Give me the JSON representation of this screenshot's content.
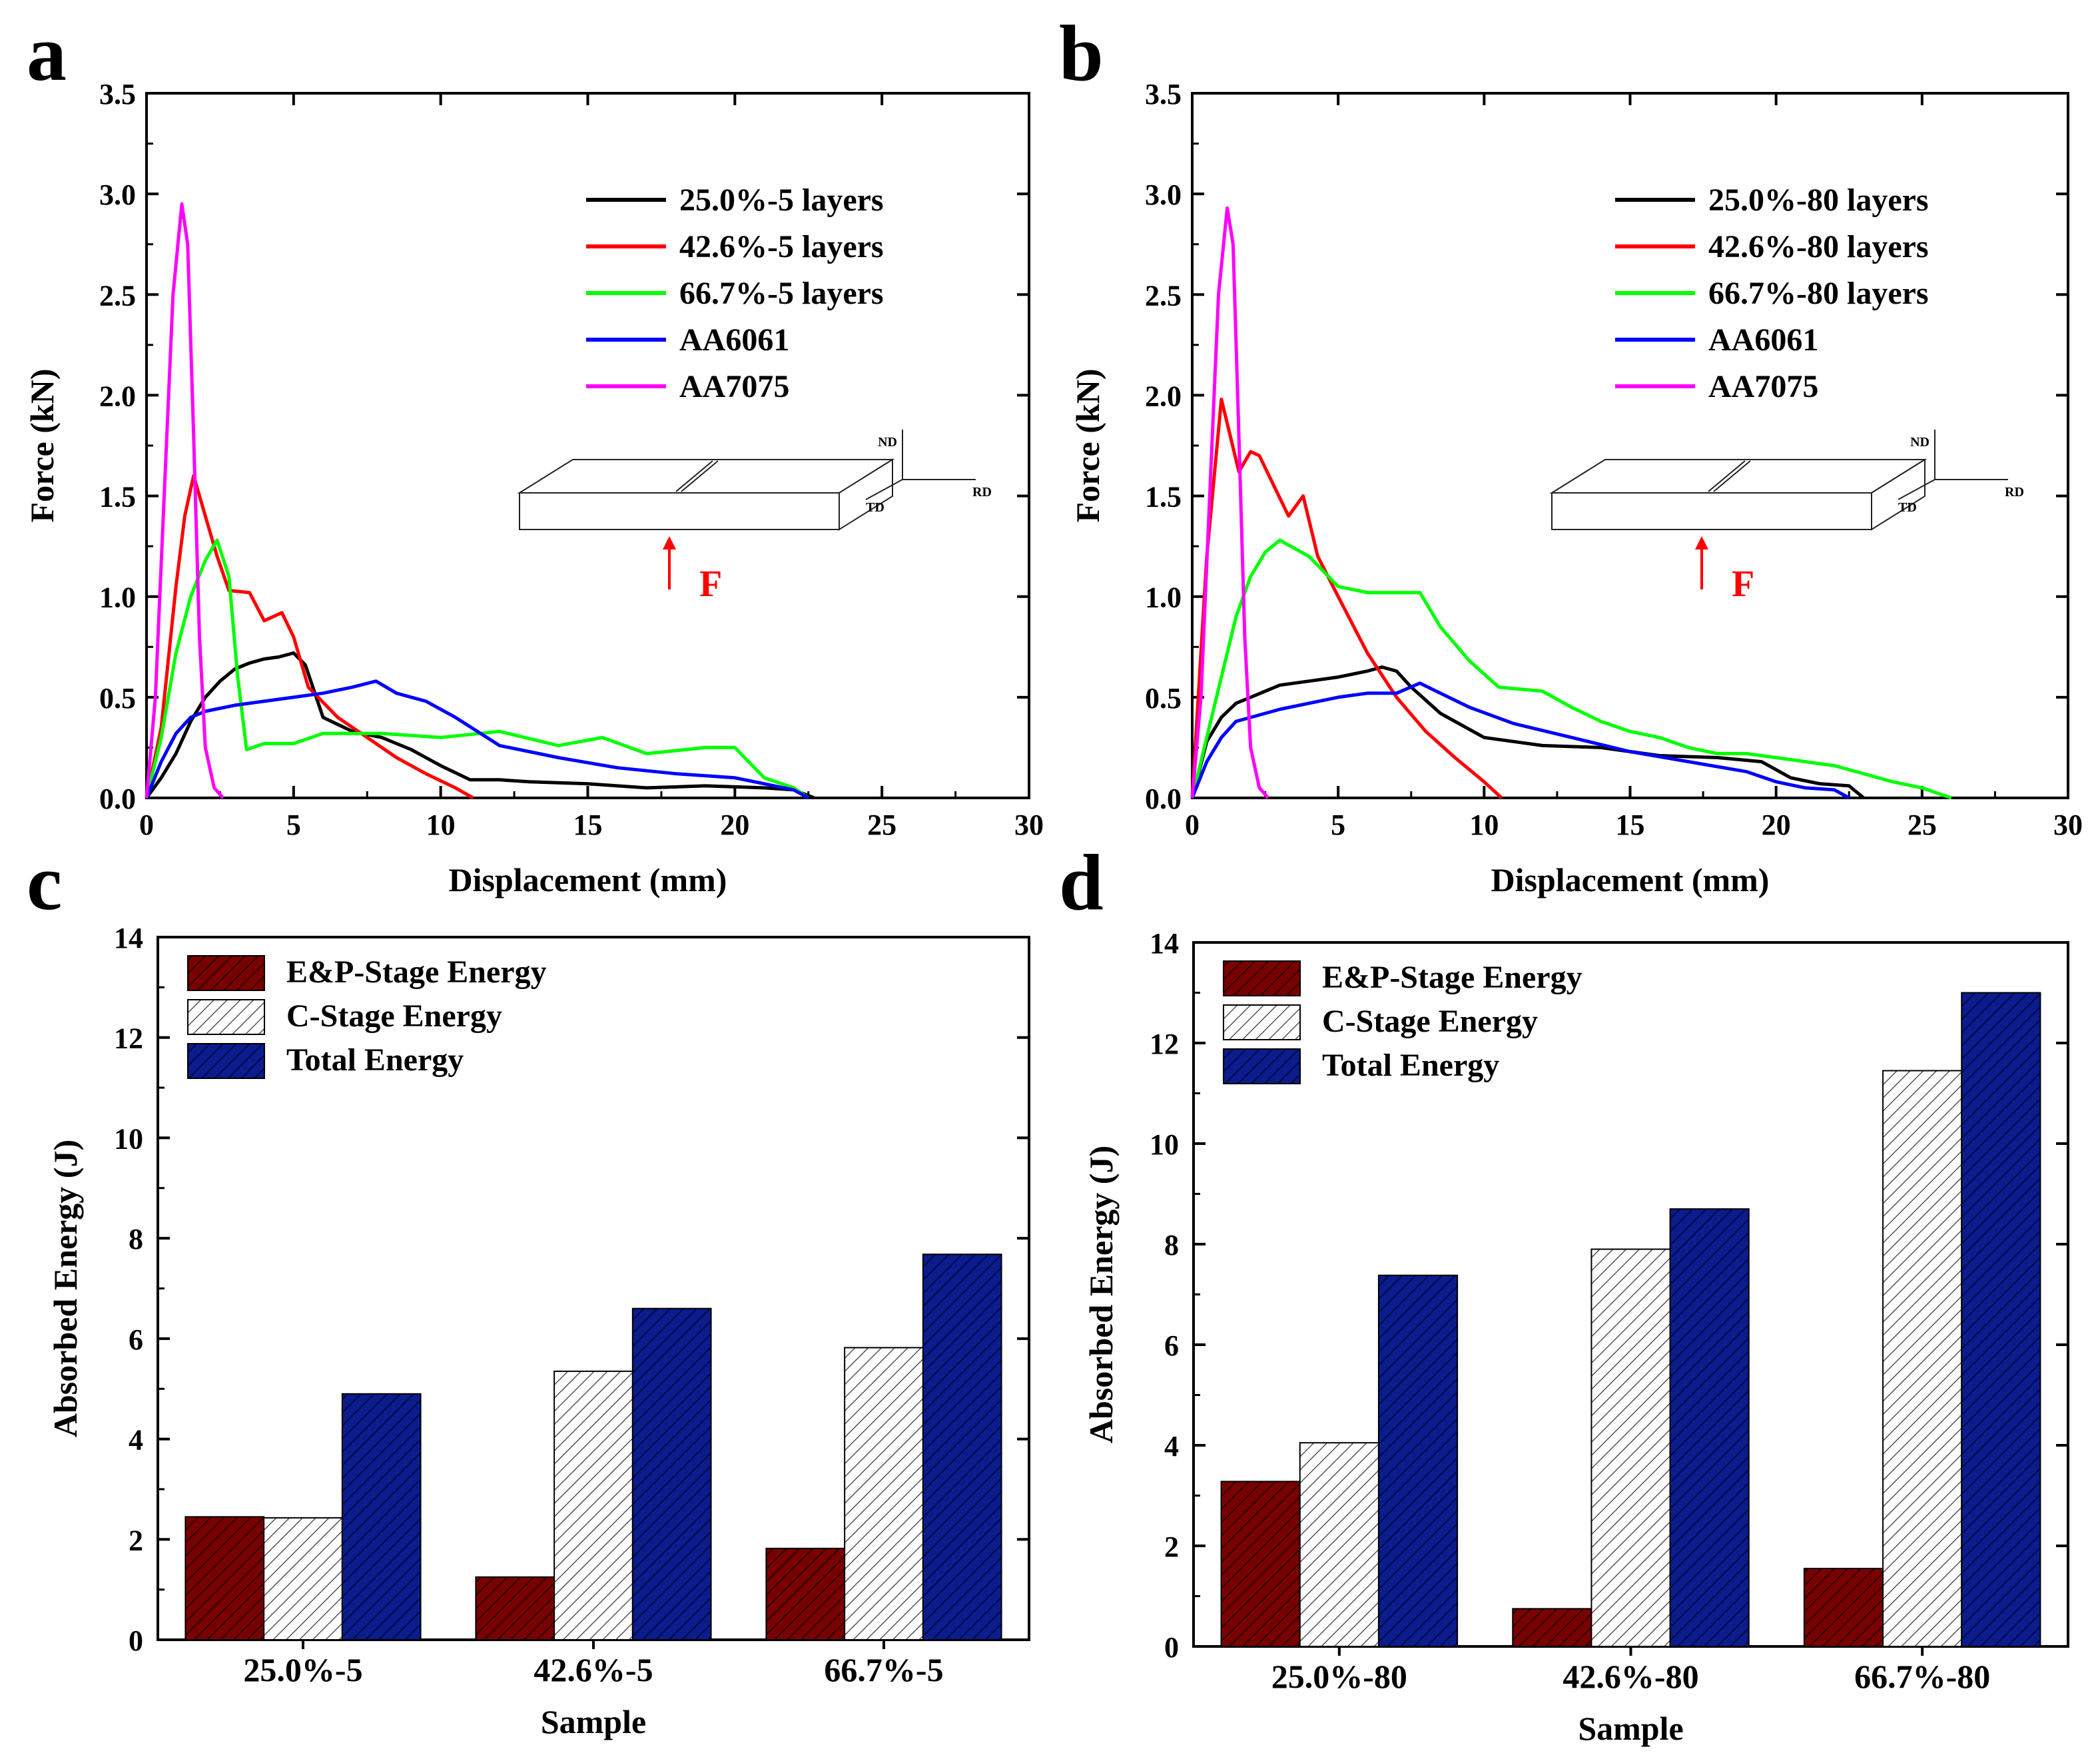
{
  "figure": {
    "panel_labels": [
      "a",
      "b",
      "c",
      "d"
    ]
  },
  "colors": {
    "black": "#000000",
    "red": "#ff0000",
    "green": "#00ff00",
    "blue": "#0000ff",
    "magenta": "#ff00ff",
    "bar_ep": "#7a0000",
    "bar_c": "#ffffff",
    "bar_total": "#0b1c8c",
    "arrow": "#ff0000"
  },
  "chart_data": [
    {
      "panel": "a",
      "type": "line",
      "xlabel": "Displacement (mm)",
      "ylabel": "Force (kN)",
      "xlim": [
        0,
        30
      ],
      "ylim": [
        0,
        3.5
      ],
      "xticks": [
        "0",
        "5",
        "10",
        "15",
        "20",
        "25",
        "30"
      ],
      "yticks": [
        "0.0",
        "0.5",
        "1.0",
        "1.5",
        "2.0",
        "2.5",
        "3.0",
        "3.5"
      ],
      "legend_position": "top-right",
      "inset": {
        "axes": [
          "ND",
          "RD",
          "TD"
        ],
        "force_label": "F"
      },
      "series": [
        {
          "name": "25.0%-5 layers",
          "color": "black",
          "points": [
            [
              0,
              0
            ],
            [
              0.5,
              0.1
            ],
            [
              1,
              0.22
            ],
            [
              1.5,
              0.38
            ],
            [
              2,
              0.5
            ],
            [
              2.5,
              0.58
            ],
            [
              3,
              0.64
            ],
            [
              3.5,
              0.67
            ],
            [
              4,
              0.69
            ],
            [
              4.5,
              0.7
            ],
            [
              5,
              0.72
            ],
            [
              5.4,
              0.66
            ],
            [
              6,
              0.4
            ],
            [
              7,
              0.33
            ],
            [
              8,
              0.3
            ],
            [
              9,
              0.24
            ],
            [
              10,
              0.16
            ],
            [
              11,
              0.09
            ],
            [
              12,
              0.09
            ],
            [
              13,
              0.08
            ],
            [
              15,
              0.07
            ],
            [
              17,
              0.05
            ],
            [
              19,
              0.06
            ],
            [
              21,
              0.05
            ],
            [
              22,
              0.04
            ],
            [
              22.7,
              0.0
            ]
          ]
        },
        {
          "name": "42.6%-5 layers",
          "color": "red",
          "points": [
            [
              0,
              0
            ],
            [
              0.5,
              0.35
            ],
            [
              1,
              1.05
            ],
            [
              1.3,
              1.4
            ],
            [
              1.6,
              1.6
            ],
            [
              2,
              1.4
            ],
            [
              2.4,
              1.2
            ],
            [
              2.8,
              1.03
            ],
            [
              3.5,
              1.02
            ],
            [
              4,
              0.88
            ],
            [
              4.6,
              0.92
            ],
            [
              5,
              0.8
            ],
            [
              5.5,
              0.55
            ],
            [
              6.5,
              0.4
            ],
            [
              7.5,
              0.3
            ],
            [
              8.5,
              0.2
            ],
            [
              9.5,
              0.12
            ],
            [
              10.5,
              0.05
            ],
            [
              11.1,
              0.0
            ]
          ]
        },
        {
          "name": "66.7%-5 layers",
          "color": "green",
          "points": [
            [
              0,
              0
            ],
            [
              0.5,
              0.3
            ],
            [
              1,
              0.72
            ],
            [
              1.5,
              1.0
            ],
            [
              2,
              1.18
            ],
            [
              2.4,
              1.28
            ],
            [
              2.8,
              1.1
            ],
            [
              3.1,
              0.6
            ],
            [
              3.4,
              0.24
            ],
            [
              4,
              0.27
            ],
            [
              5,
              0.27
            ],
            [
              6,
              0.32
            ],
            [
              8,
              0.32
            ],
            [
              10,
              0.3
            ],
            [
              12,
              0.33
            ],
            [
              14,
              0.26
            ],
            [
              15.5,
              0.3
            ],
            [
              17,
              0.22
            ],
            [
              19,
              0.25
            ],
            [
              20,
              0.25
            ],
            [
              21,
              0.1
            ],
            [
              22,
              0.05
            ],
            [
              22.5,
              0.0
            ]
          ]
        },
        {
          "name": "AA6061",
          "color": "blue",
          "points": [
            [
              0,
              0
            ],
            [
              0.5,
              0.18
            ],
            [
              1,
              0.32
            ],
            [
              1.5,
              0.4
            ],
            [
              2,
              0.43
            ],
            [
              3,
              0.46
            ],
            [
              4,
              0.48
            ],
            [
              5,
              0.5
            ],
            [
              6,
              0.52
            ],
            [
              7,
              0.55
            ],
            [
              7.8,
              0.58
            ],
            [
              8.5,
              0.52
            ],
            [
              9.5,
              0.48
            ],
            [
              10.5,
              0.4
            ],
            [
              12,
              0.26
            ],
            [
              14,
              0.2
            ],
            [
              16,
              0.15
            ],
            [
              18,
              0.12
            ],
            [
              20,
              0.1
            ],
            [
              21,
              0.07
            ],
            [
              22,
              0.04
            ],
            [
              22.5,
              0.0
            ]
          ]
        },
        {
          "name": "AA7075",
          "color": "magenta",
          "points": [
            [
              0,
              0
            ],
            [
              0.3,
              0.5
            ],
            [
              0.6,
              1.5
            ],
            [
              0.9,
              2.5
            ],
            [
              1.2,
              2.95
            ],
            [
              1.4,
              2.75
            ],
            [
              1.6,
              1.8
            ],
            [
              1.8,
              0.8
            ],
            [
              2,
              0.25
            ],
            [
              2.3,
              0.05
            ],
            [
              2.6,
              0.0
            ]
          ]
        }
      ]
    },
    {
      "panel": "b",
      "type": "line",
      "xlabel": "Displacement (mm)",
      "ylabel": "Force (kN)",
      "xlim": [
        0,
        30
      ],
      "ylim": [
        0,
        3.5
      ],
      "xticks": [
        "0",
        "5",
        "10",
        "15",
        "20",
        "25",
        "30"
      ],
      "yticks": [
        "0.0",
        "0.5",
        "1.0",
        "1.5",
        "2.0",
        "2.5",
        "3.0",
        "3.5"
      ],
      "legend_position": "top-right",
      "inset": {
        "axes": [
          "ND",
          "RD",
          "TD"
        ],
        "force_label": "F"
      },
      "series": [
        {
          "name": "25.0%-80 layers",
          "color": "black",
          "points": [
            [
              0,
              0
            ],
            [
              0.5,
              0.28
            ],
            [
              1,
              0.4
            ],
            [
              1.5,
              0.47
            ],
            [
              2,
              0.5
            ],
            [
              3,
              0.56
            ],
            [
              4,
              0.58
            ],
            [
              5,
              0.6
            ],
            [
              6,
              0.63
            ],
            [
              6.5,
              0.65
            ],
            [
              7,
              0.63
            ],
            [
              7.5,
              0.55
            ],
            [
              8.5,
              0.42
            ],
            [
              10,
              0.3
            ],
            [
              12,
              0.26
            ],
            [
              14,
              0.25
            ],
            [
              16,
              0.21
            ],
            [
              18,
              0.2
            ],
            [
              19.5,
              0.18
            ],
            [
              20.5,
              0.1
            ],
            [
              21.5,
              0.07
            ],
            [
              22.5,
              0.06
            ],
            [
              23,
              0.0
            ]
          ]
        },
        {
          "name": "42.6%-80 layers",
          "color": "red",
          "points": [
            [
              0,
              0
            ],
            [
              0.5,
              1.2
            ],
            [
              1,
              1.98
            ],
            [
              1.3,
              1.8
            ],
            [
              1.6,
              1.62
            ],
            [
              2,
              1.72
            ],
            [
              2.3,
              1.7
            ],
            [
              2.8,
              1.55
            ],
            [
              3.3,
              1.4
            ],
            [
              3.8,
              1.5
            ],
            [
              4.3,
              1.2
            ],
            [
              5,
              1.0
            ],
            [
              6,
              0.72
            ],
            [
              7,
              0.5
            ],
            [
              8,
              0.33
            ],
            [
              9,
              0.2
            ],
            [
              10,
              0.08
            ],
            [
              10.6,
              0.0
            ]
          ]
        },
        {
          "name": "66.7%-80 layers",
          "color": "green",
          "points": [
            [
              0,
              0
            ],
            [
              0.5,
              0.3
            ],
            [
              1,
              0.6
            ],
            [
              1.5,
              0.9
            ],
            [
              2,
              1.1
            ],
            [
              2.5,
              1.22
            ],
            [
              3,
              1.28
            ],
            [
              4,
              1.2
            ],
            [
              5,
              1.05
            ],
            [
              6,
              1.02
            ],
            [
              7,
              1.02
            ],
            [
              7.8,
              1.02
            ],
            [
              8.5,
              0.85
            ],
            [
              9.5,
              0.68
            ],
            [
              10.5,
              0.55
            ],
            [
              12,
              0.53
            ],
            [
              13,
              0.45
            ],
            [
              14,
              0.38
            ],
            [
              15,
              0.33
            ],
            [
              16,
              0.3
            ],
            [
              17,
              0.25
            ],
            [
              18,
              0.22
            ],
            [
              19,
              0.22
            ],
            [
              20,
              0.2
            ],
            [
              21,
              0.18
            ],
            [
              22,
              0.16
            ],
            [
              23,
              0.12
            ],
            [
              24,
              0.08
            ],
            [
              25,
              0.05
            ],
            [
              26,
              0.0
            ]
          ]
        },
        {
          "name": "AA6061",
          "color": "blue",
          "points": [
            [
              0,
              0
            ],
            [
              0.5,
              0.18
            ],
            [
              1,
              0.3
            ],
            [
              1.5,
              0.38
            ],
            [
              2,
              0.4
            ],
            [
              3,
              0.44
            ],
            [
              4,
              0.47
            ],
            [
              5,
              0.5
            ],
            [
              6,
              0.52
            ],
            [
              7,
              0.52
            ],
            [
              7.8,
              0.57
            ],
            [
              8.5,
              0.52
            ],
            [
              9.5,
              0.45
            ],
            [
              11,
              0.37
            ],
            [
              13,
              0.3
            ],
            [
              15,
              0.23
            ],
            [
              17,
              0.18
            ],
            [
              19,
              0.13
            ],
            [
              20,
              0.08
            ],
            [
              21,
              0.05
            ],
            [
              22,
              0.04
            ],
            [
              22.5,
              0.0
            ]
          ]
        },
        {
          "name": "AA7075",
          "color": "magenta",
          "points": [
            [
              0,
              0
            ],
            [
              0.3,
              0.5
            ],
            [
              0.6,
              1.5
            ],
            [
              0.9,
              2.5
            ],
            [
              1.2,
              2.93
            ],
            [
              1.4,
              2.75
            ],
            [
              1.6,
              1.8
            ],
            [
              1.8,
              0.8
            ],
            [
              2,
              0.25
            ],
            [
              2.3,
              0.05
            ],
            [
              2.6,
              0.0
            ]
          ]
        }
      ]
    },
    {
      "panel": "c",
      "type": "bar",
      "xlabel": "Sample",
      "ylabel": "Absorbed Energy (J)",
      "ylim": [
        0,
        14
      ],
      "yticks": [
        "0",
        "2",
        "4",
        "6",
        "8",
        "10",
        "12",
        "14"
      ],
      "categories": [
        "25.0%-5",
        "42.6%-5",
        "66.7%-5"
      ],
      "legend_position": "top-left",
      "series": [
        {
          "name": "E&P-Stage Energy",
          "style": "bar_ep",
          "values": [
            2.45,
            1.25,
            1.82
          ]
        },
        {
          "name": "C-Stage Energy",
          "style": "bar_c",
          "values": [
            2.43,
            5.35,
            5.82
          ]
        },
        {
          "name": "Total Energy",
          "style": "bar_total",
          "values": [
            4.9,
            6.6,
            7.68
          ]
        }
      ]
    },
    {
      "panel": "d",
      "type": "bar",
      "xlabel": "Sample",
      "ylabel": "Absorbed Energy (J)",
      "ylim": [
        0,
        14
      ],
      "yticks": [
        "0",
        "2",
        "4",
        "6",
        "8",
        "10",
        "12",
        "14"
      ],
      "categories": [
        "25.0%-80",
        "42.6%-80",
        "66.7%-80"
      ],
      "legend_position": "top-left",
      "series": [
        {
          "name": "E&P-Stage Energy",
          "style": "bar_ep",
          "values": [
            3.28,
            0.75,
            1.55
          ]
        },
        {
          "name": "C-Stage Energy",
          "style": "bar_c",
          "values": [
            4.05,
            7.9,
            11.45
          ]
        },
        {
          "name": "Total Energy",
          "style": "bar_total",
          "values": [
            7.38,
            8.7,
            13.0
          ]
        }
      ]
    }
  ]
}
